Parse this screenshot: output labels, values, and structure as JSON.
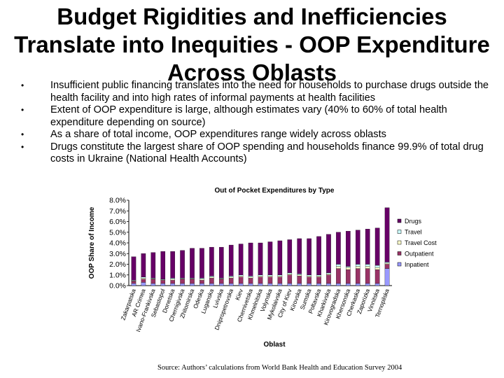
{
  "slide": {
    "title_lines": [
      "Budget Rigidities and Inefficiencies",
      "Translate into Inequities - OOP Expenditure",
      "Across Oblasts"
    ],
    "bullets": [
      "Insufficient public financing translates into the need for households to purchase drugs outside the health facility and into high rates of informal payments at health facilities",
      "Extent of OOP expenditure is large, although estimates vary (40% to 60% of total health expenditure depending on source)",
      "As a share of total income, OOP expenditures range widely across oblasts",
      "Drugs constitute the largest share of OOP spending and households finance 99.9% of total drug costs in Ukraine (National Health Accounts)"
    ],
    "bullet_marker": "•",
    "source": "Source: Authors’ calculations from World Bank Health and Education Survey 2004"
  },
  "chart_data": {
    "type": "bar",
    "stacked": true,
    "title": "Out of Pocket Expenditures by Type",
    "xlabel": "Oblast",
    "ylabel": "OOP Share of Income",
    "ylim": [
      0,
      8
    ],
    "yticks": [
      "0.0%",
      "1.0%",
      "2.0%",
      "3.0%",
      "4.0%",
      "5.0%",
      "6.0%",
      "7.0%",
      "8.0%"
    ],
    "legend_position": "right",
    "categories": [
      "Zakarpatska",
      "AR Crimea",
      "Ivano-Frankivska",
      "Sebastopol",
      "Donetska",
      "Chernigivska",
      "Zhitomirska",
      "Odeska",
      "Luganska",
      "Lvivska",
      "Dnipropetrovska",
      "Kiev",
      "Chernivetska",
      "Khmelnitska",
      "Volynska",
      "Mykolaivska",
      "City of Kiev",
      "Kirovska",
      "Sumska",
      "Poltavska",
      "Kharkivska",
      "Kirovogradska",
      "Khersonska",
      "Cherkaska",
      "Zaporizka",
      "Vinnitska",
      "Ternopilska"
    ],
    "series": [
      {
        "name": "Inpatient",
        "color": "#9999ff",
        "values": [
          0.2,
          0.3,
          0.2,
          0.2,
          0.2,
          0.2,
          0.2,
          0.2,
          0.2,
          0.2,
          0.2,
          0.2,
          0.2,
          0.2,
          0.2,
          0.2,
          0.2,
          0.2,
          0.2,
          0.2,
          0.2,
          0.2,
          0.2,
          0.2,
          0.2,
          0.2,
          1.6
        ]
      },
      {
        "name": "Outpatient",
        "color": "#993366",
        "values": [
          0.2,
          0.3,
          0.4,
          0.3,
          0.3,
          0.4,
          0.4,
          0.3,
          0.5,
          0.4,
          0.5,
          0.6,
          0.5,
          0.6,
          0.6,
          0.6,
          0.8,
          0.7,
          0.6,
          0.6,
          0.8,
          1.4,
          1.3,
          1.4,
          1.4,
          1.3,
          0.4
        ]
      },
      {
        "name": "Travel Cost",
        "color": "#ffffcc",
        "values": [
          0.05,
          0.1,
          0.05,
          0.05,
          0.1,
          0.05,
          0.05,
          0.1,
          0.1,
          0.05,
          0.1,
          0.1,
          0.1,
          0.1,
          0.1,
          0.1,
          0.1,
          0.1,
          0.1,
          0.1,
          0.1,
          0.2,
          0.2,
          0.2,
          0.2,
          0.2,
          0.1
        ]
      },
      {
        "name": "Travel",
        "color": "#ccffff",
        "values": [
          0.05,
          0.1,
          0.05,
          0.05,
          0.1,
          0.05,
          0.05,
          0.1,
          0.1,
          0.05,
          0.1,
          0.1,
          0.1,
          0.1,
          0.1,
          0.1,
          0.1,
          0.1,
          0.1,
          0.1,
          0.1,
          0.2,
          0.1,
          0.2,
          0.2,
          0.2,
          0.1
        ]
      },
      {
        "name": "Drugs",
        "color": "#660066",
        "values": [
          2.2,
          2.2,
          2.4,
          2.6,
          2.5,
          2.6,
          2.8,
          2.8,
          2.7,
          2.9,
          2.9,
          2.9,
          3.1,
          3.0,
          3.1,
          3.2,
          3.1,
          3.3,
          3.4,
          3.6,
          3.6,
          3.0,
          3.3,
          3.2,
          3.3,
          3.5,
          5.1
        ]
      }
    ],
    "legend_order": [
      "Drugs",
      "Travel",
      "Travel Cost",
      "Outpatient",
      "Inpatient"
    ]
  }
}
